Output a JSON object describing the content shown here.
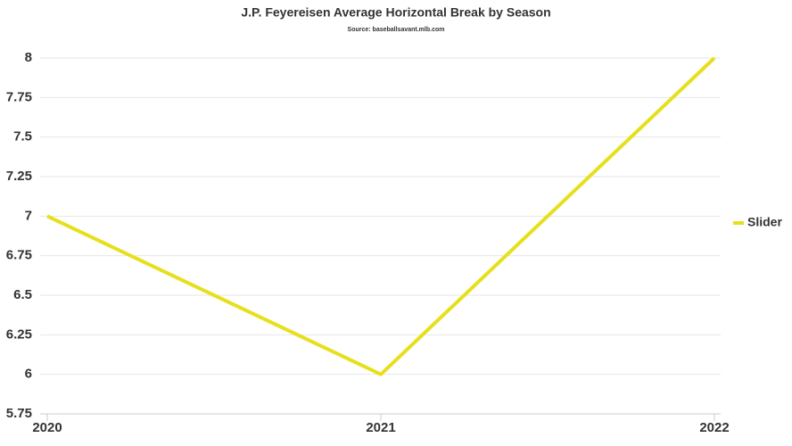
{
  "chart_data": {
    "type": "line",
    "title": "J.P. Feyereisen Average Horizontal Break by Season",
    "subtitle": "Source: baseballsavant.mlb.com",
    "x": [
      2020,
      2021,
      2022
    ],
    "xlim": [
      2020,
      2022
    ],
    "xticks": [
      2020,
      2021,
      2022
    ],
    "series": [
      {
        "name": "Slider",
        "color": "#e6e01c",
        "values": [
          7,
          6,
          8
        ]
      }
    ],
    "ylim": [
      5.75,
      8
    ],
    "yticks": [
      5.75,
      6,
      6.25,
      6.5,
      6.75,
      7,
      7.25,
      7.5,
      7.75,
      8
    ],
    "grid": true,
    "legend": "right"
  }
}
